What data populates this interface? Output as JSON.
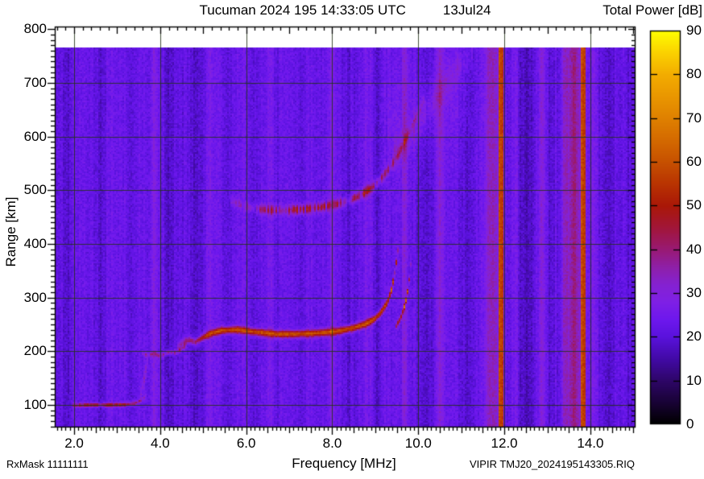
{
  "header": {
    "title": "Tucuman 2024 195 14:33:05 UTC",
    "date": "13Jul24",
    "colorbar_title": "Total Power [dB]"
  },
  "footer": {
    "left": "RxMask 11111111",
    "right": "VIPIR  TMJ20_2024195143305.RIQ"
  },
  "chart_data": {
    "type": "heatmap",
    "title": "Tucuman 2024 195 14:33:05 UTC 13Jul24",
    "x": {
      "label": "Frequency [MHz]",
      "min": 1.55,
      "max": 15.05,
      "major_ticks": [
        2,
        4,
        6,
        8,
        10,
        12,
        14
      ],
      "major_tick_labels": [
        "2.0",
        "4.0",
        "6.0",
        "8.0",
        "10.0",
        "12.0",
        "14.0"
      ],
      "minor_tick_mhz": 0.1,
      "medium_tick_mhz": 0.5,
      "top_minor_tick_mhz": 0.2,
      "top_major_tick_mhz": 1.0
    },
    "y": {
      "label": "Range [km]",
      "min": 58,
      "max": 805,
      "major_ticks": [
        100,
        200,
        300,
        400,
        500,
        600,
        700,
        800
      ],
      "major_tick_labels": [
        "100",
        "200",
        "300",
        "400",
        "500",
        "600",
        "700",
        "800"
      ],
      "minor_tick_km": 10
    },
    "grid": {
      "x_step_mhz": 2,
      "y_step_km": 100,
      "color": "rgba(35,50,25,0.85)"
    },
    "no_data_above_km": 766,
    "background": {
      "base_db": 23,
      "column_var_db": 2.2,
      "block_var_db": 2.0,
      "cell_noise_db": 3.0,
      "seed": 1234567
    },
    "colorbar": {
      "title": "Total Power [dB]",
      "min": 0,
      "max": 90,
      "tick_step": 10,
      "tick_values": [
        0,
        10,
        20,
        30,
        40,
        50,
        60,
        70,
        80,
        90
      ],
      "tick_labels": [
        "0",
        "10",
        "20",
        "30",
        "40",
        "50",
        "60",
        "70",
        "80",
        "90"
      ],
      "stops_db_hex": [
        [
          0,
          "#000000"
        ],
        [
          5,
          "#190335"
        ],
        [
          10,
          "#2e0668"
        ],
        [
          15,
          "#420aa6"
        ],
        [
          20,
          "#5a12dd"
        ],
        [
          24,
          "#6e18ee"
        ],
        [
          28,
          "#7f20e6"
        ],
        [
          32,
          "#8522d2"
        ],
        [
          36,
          "#8f20a8"
        ],
        [
          40,
          "#991a74"
        ],
        [
          45,
          "#a2163a"
        ],
        [
          50,
          "#aa1808"
        ],
        [
          55,
          "#b93402"
        ],
        [
          60,
          "#c75101"
        ],
        [
          65,
          "#d46a00"
        ],
        [
          70,
          "#e08100"
        ],
        [
          75,
          "#ea9700"
        ],
        [
          80,
          "#f3ad00"
        ],
        [
          85,
          "#fbd200"
        ],
        [
          90,
          "#ffff00"
        ]
      ]
    },
    "interference_bands": [
      {
        "f": 1.82,
        "w": 0.07,
        "db": -4
      },
      {
        "f": 2.62,
        "w": 0.1,
        "db": -3.5
      },
      {
        "f": 3.32,
        "w": 0.06,
        "db": -3
      },
      {
        "f": 3.86,
        "w": 0.05,
        "db": 6
      },
      {
        "f": 4.22,
        "w": 0.13,
        "db": -5
      },
      {
        "f": 4.86,
        "w": 0.11,
        "db": -4
      },
      {
        "f": 5.14,
        "w": 0.05,
        "db": 4
      },
      {
        "f": 5.52,
        "w": 0.07,
        "db": -3
      },
      {
        "f": 6.18,
        "w": 0.08,
        "db": -3
      },
      {
        "f": 6.56,
        "w": 0.05,
        "db": 4
      },
      {
        "f": 7.32,
        "w": 0.07,
        "db": -3
      },
      {
        "f": 7.98,
        "w": 0.05,
        "db": 4.5
      },
      {
        "f": 8.52,
        "w": 0.11,
        "db": -4.5
      },
      {
        "f": 8.82,
        "w": 0.05,
        "db": 4
      },
      {
        "f": 9.06,
        "w": 0.06,
        "db": -4
      },
      {
        "f": 9.7,
        "w": 0.035,
        "db": 7
      },
      {
        "f": 10.2,
        "w": 0.16,
        "db": -4.5
      },
      {
        "f": 10.54,
        "w": 0.07,
        "db": 9
      },
      {
        "f": 10.9,
        "w": 0.04,
        "db": 5
      },
      {
        "f": 11.15,
        "w": 0.18,
        "db": -4.5
      },
      {
        "f": 11.74,
        "w": 0.14,
        "db": 12
      },
      {
        "f": 11.95,
        "w": 0.055,
        "db": 31,
        "sharp": true
      },
      {
        "f": 12.3,
        "w": 0.05,
        "db": 3.5
      },
      {
        "f": 12.52,
        "w": 0.18,
        "db": -5
      },
      {
        "f": 12.9,
        "w": 0.055,
        "db": 9
      },
      {
        "f": 13.12,
        "w": 0.07,
        "db": -4
      },
      {
        "f": 13.42,
        "w": 0.05,
        "db": 8
      },
      {
        "f": 13.65,
        "w": 0.12,
        "db": 14
      },
      {
        "f": 13.85,
        "w": 0.05,
        "db": 31,
        "sharp": true
      },
      {
        "f": 14.1,
        "w": 0.05,
        "db": 4
      },
      {
        "f": 14.42,
        "w": 0.13,
        "db": -4.5
      },
      {
        "f": 14.88,
        "w": 0.07,
        "db": -4
      }
    ],
    "traces": [
      {
        "name": "e-layer-echo",
        "sigma_km": 3.5,
        "speckle": 0.25,
        "points": [
          [
            1.98,
            99
          ],
          [
            2.4,
            100
          ],
          [
            2.9,
            100
          ],
          [
            3.25,
            101
          ],
          [
            3.42,
            103
          ],
          [
            3.55,
            108
          ],
          [
            3.68,
            117
          ]
        ],
        "amp": [
          [
            1.98,
            20
          ],
          [
            2.15,
            25
          ],
          [
            3.2,
            25
          ],
          [
            3.45,
            18
          ],
          [
            3.68,
            7
          ]
        ]
      },
      {
        "name": "ef-retardation",
        "sigma_km": 14,
        "speckle": 0.4,
        "points": [
          [
            3.52,
            112
          ],
          [
            3.6,
            138
          ],
          [
            3.66,
            162
          ],
          [
            3.72,
            186
          ]
        ],
        "amp": [
          [
            3.52,
            8
          ],
          [
            3.72,
            9
          ]
        ]
      },
      {
        "name": "es-patch",
        "sigma_km": 4.5,
        "speckle": 0.55,
        "points": [
          [
            3.58,
            197
          ],
          [
            3.72,
            192
          ],
          [
            3.85,
            196
          ],
          [
            3.98,
            191
          ],
          [
            4.1,
            194
          ],
          [
            4.22,
            199
          ],
          [
            4.35,
            197
          ],
          [
            4.5,
            204
          ],
          [
            4.62,
            213
          ]
        ],
        "amp": [
          [
            3.58,
            9
          ],
          [
            3.8,
            13
          ],
          [
            4.1,
            12
          ],
          [
            4.3,
            15
          ],
          [
            4.5,
            14
          ],
          [
            4.62,
            8
          ]
        ]
      },
      {
        "name": "f2-o-trace",
        "sigma_km": 6.5,
        "speckle": 0,
        "speckle_after_mhz": 9.3,
        "speckle_after": 0.55,
        "points": [
          [
            4.38,
            207
          ],
          [
            4.52,
            217
          ],
          [
            4.68,
            221
          ],
          [
            4.82,
            217
          ],
          [
            5.0,
            226
          ],
          [
            5.2,
            234
          ],
          [
            5.45,
            239
          ],
          [
            5.8,
            240
          ],
          [
            6.2,
            236
          ],
          [
            6.7,
            232
          ],
          [
            7.2,
            232
          ],
          [
            7.7,
            234
          ],
          [
            8.1,
            237
          ],
          [
            8.5,
            243
          ],
          [
            8.8,
            251
          ],
          [
            9.0,
            260
          ],
          [
            9.15,
            272
          ],
          [
            9.3,
            291
          ],
          [
            9.4,
            315
          ],
          [
            9.47,
            345
          ],
          [
            9.52,
            372
          ],
          [
            9.56,
            396
          ]
        ],
        "amp": [
          [
            4.38,
            11
          ],
          [
            4.6,
            17
          ],
          [
            4.9,
            25
          ],
          [
            5.1,
            32
          ],
          [
            5.4,
            37
          ],
          [
            8.6,
            37
          ],
          [
            9.0,
            36
          ],
          [
            9.3,
            33
          ],
          [
            9.45,
            28
          ],
          [
            9.56,
            15
          ]
        ]
      },
      {
        "name": "f2-x-cusp",
        "sigma_km": 5,
        "speckle": 0.55,
        "points": [
          [
            9.5,
            246
          ],
          [
            9.6,
            260
          ],
          [
            9.68,
            278
          ],
          [
            9.75,
            300
          ],
          [
            9.8,
            328
          ],
          [
            9.84,
            358
          ],
          [
            9.88,
            394
          ]
        ],
        "amp": [
          [
            9.5,
            16
          ],
          [
            9.6,
            25
          ],
          [
            9.7,
            27
          ],
          [
            9.8,
            25
          ],
          [
            9.88,
            13
          ]
        ]
      },
      {
        "name": "second-hop",
        "sigma_km": 9,
        "speckle": 0.8,
        "points": [
          [
            5.65,
            480
          ],
          [
            5.9,
            472
          ],
          [
            6.2,
            466
          ],
          [
            6.6,
            463
          ],
          [
            7.0,
            463
          ],
          [
            7.4,
            465
          ],
          [
            7.8,
            469
          ],
          [
            8.1,
            474
          ],
          [
            8.4,
            481
          ],
          [
            8.7,
            492
          ],
          [
            8.95,
            505
          ],
          [
            9.15,
            521
          ],
          [
            9.35,
            541
          ],
          [
            9.55,
            566
          ],
          [
            9.75,
            597
          ],
          [
            9.95,
            632
          ],
          [
            10.15,
            668
          ]
        ],
        "amp": [
          [
            5.65,
            6
          ],
          [
            6.0,
            9
          ],
          [
            6.5,
            13
          ],
          [
            6.8,
            16
          ],
          [
            7.3,
            17
          ],
          [
            8.0,
            17
          ],
          [
            8.5,
            18
          ],
          [
            8.9,
            16
          ],
          [
            9.2,
            13
          ],
          [
            9.5,
            10
          ],
          [
            9.8,
            7
          ],
          [
            10.15,
            5
          ]
        ]
      },
      {
        "name": "spread-f-arc",
        "sigma_km": 28,
        "speckle": 0.5,
        "points": [
          [
            9.4,
            560
          ],
          [
            9.8,
            600
          ],
          [
            10.2,
            645
          ],
          [
            10.6,
            692
          ],
          [
            11.0,
            735
          ],
          [
            11.3,
            762
          ]
        ],
        "amp": [
          [
            9.4,
            5
          ],
          [
            10.3,
            5
          ],
          [
            11.3,
            4
          ]
        ]
      },
      {
        "name": "diffuse-glow",
        "sigma_km": 90,
        "speckle": 0.2,
        "points": [
          [
            9.3,
            620
          ],
          [
            10.2,
            655
          ],
          [
            11.2,
            690
          ]
        ],
        "amp": [
          [
            9.3,
            2.5
          ],
          [
            10.2,
            3
          ],
          [
            11.2,
            2
          ]
        ]
      }
    ]
  }
}
